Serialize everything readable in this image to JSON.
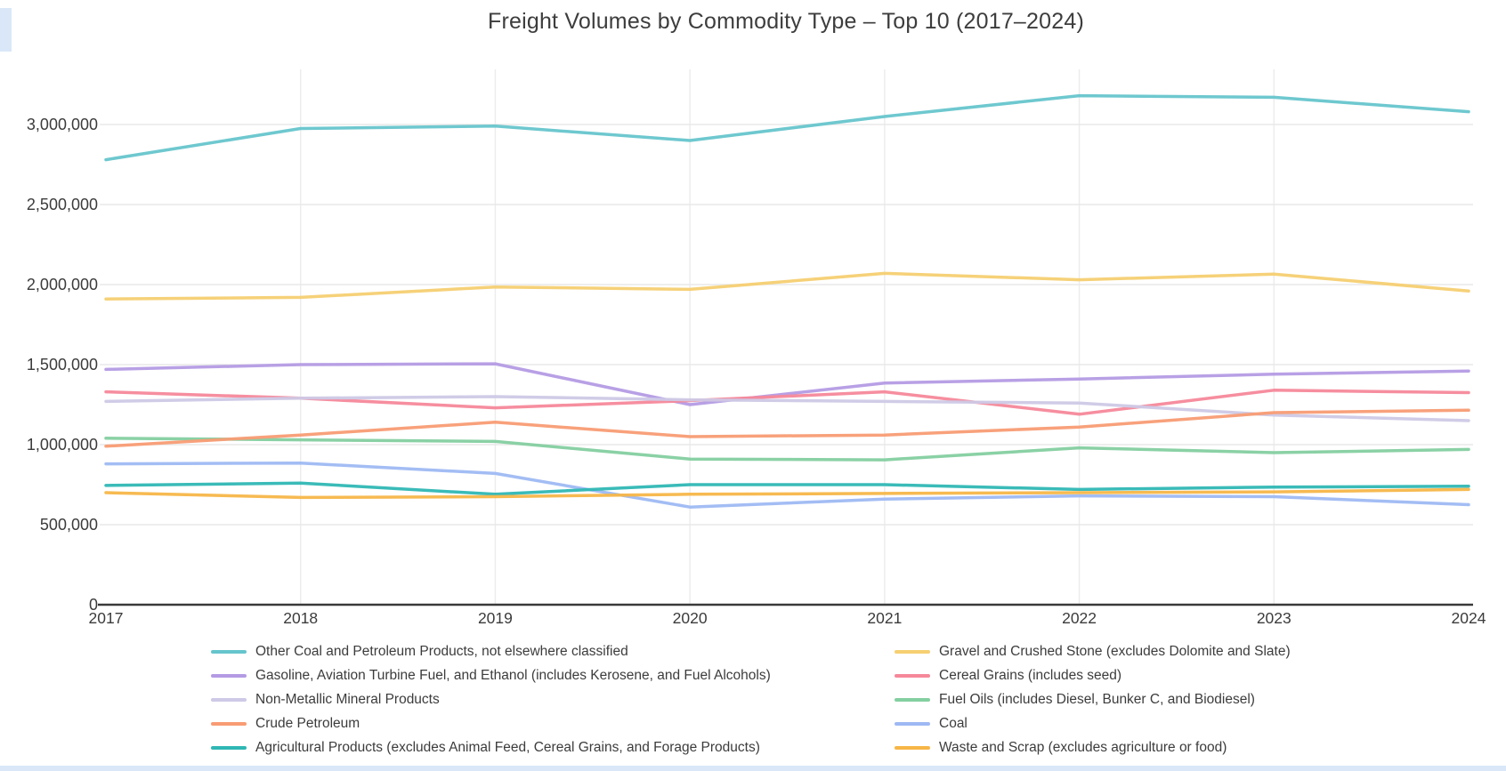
{
  "chart_data": {
    "type": "line",
    "title": "Freight Volumes by Commodity Type – Top 10 (2017–2024)",
    "x": [
      2017,
      2018,
      2019,
      2020,
      2021,
      2022,
      2023,
      2024
    ],
    "x_tick_labels": [
      "2017",
      "2018",
      "2019",
      "2020",
      "2021",
      "2022",
      "2023",
      "2024"
    ],
    "y_ticks": [
      {
        "value": 0,
        "label": "0"
      },
      {
        "value": 500000,
        "label": "500,000"
      },
      {
        "value": 1000000,
        "label": "1,000,000"
      },
      {
        "value": 1500000,
        "label": "1,500,000"
      },
      {
        "value": 2000000,
        "label": "2,000,000"
      },
      {
        "value": 2500000,
        "label": "2,500,000"
      },
      {
        "value": 3000000,
        "label": "3,000,000"
      }
    ],
    "ylim": [
      0,
      3350000
    ],
    "grid": true,
    "legend_position": "bottom-two-columns",
    "series": [
      {
        "name": "Other Coal and Petroleum Products, not elsewhere classified",
        "color": "#66C5CC",
        "legend_column": "left",
        "values": [
          2780000,
          2975000,
          2990000,
          2900000,
          3050000,
          3180000,
          3170000,
          3080000
        ]
      },
      {
        "name": "Gravel and Crushed Stone (excludes Dolomite and Slate)",
        "color": "#F6CF71",
        "legend_column": "right",
        "values": [
          1910000,
          1920000,
          1985000,
          1970000,
          2070000,
          2030000,
          2065000,
          1960000
        ]
      },
      {
        "name": "Gasoline, Aviation Turbine Fuel, and Ethanol (includes Kerosene, and Fuel Alcohols)",
        "color": "#B49BE4",
        "legend_column": "left",
        "values": [
          1470000,
          1500000,
          1505000,
          1250000,
          1385000,
          1410000,
          1440000,
          1460000
        ]
      },
      {
        "name": "Cereal Grains (includes seed)",
        "color": "#F5889A",
        "legend_column": "right",
        "values": [
          1330000,
          1290000,
          1230000,
          1275000,
          1330000,
          1190000,
          1340000,
          1325000
        ]
      },
      {
        "name": "Non-Metallic Mineral Products",
        "color": "#CDC9E6",
        "legend_column": "left",
        "values": [
          1270000,
          1290000,
          1300000,
          1280000,
          1270000,
          1260000,
          1185000,
          1150000
        ]
      },
      {
        "name": "Fuel Oils (includes Diesel, Bunker C, and Biodiesel)",
        "color": "#84CFA0",
        "legend_column": "right",
        "values": [
          1040000,
          1030000,
          1020000,
          910000,
          905000,
          980000,
          950000,
          970000
        ]
      },
      {
        "name": "Crude Petroleum",
        "color": "#F89C74",
        "legend_column": "left",
        "values": [
          990000,
          1060000,
          1140000,
          1050000,
          1060000,
          1110000,
          1200000,
          1215000
        ]
      },
      {
        "name": "Coal",
        "color": "#9EB9F3",
        "legend_column": "right",
        "values": [
          880000,
          885000,
          820000,
          610000,
          660000,
          680000,
          675000,
          625000
        ]
      },
      {
        "name": "Agricultural Products (excludes Animal Feed, Cereal Grains, and Forage Products)",
        "color": "#2FB7B4",
        "legend_column": "left",
        "values": [
          745000,
          760000,
          690000,
          750000,
          750000,
          720000,
          735000,
          740000
        ]
      },
      {
        "name": "Waste and Scrap (excludes agriculture or food)",
        "color": "#F7B648",
        "legend_column": "right",
        "values": [
          700000,
          670000,
          675000,
          690000,
          695000,
          700000,
          705000,
          720000
        ]
      }
    ],
    "colors": {
      "axis_line": "#3a3a3a",
      "h_gridline": "#e8e8e8",
      "v_gridline": "#ececec",
      "tick_label": "#3b3b3b",
      "title_text": "#3d3d3d",
      "legend_text": "#3c3c3c",
      "scroll_artifact": "#d9e7f8"
    }
  }
}
